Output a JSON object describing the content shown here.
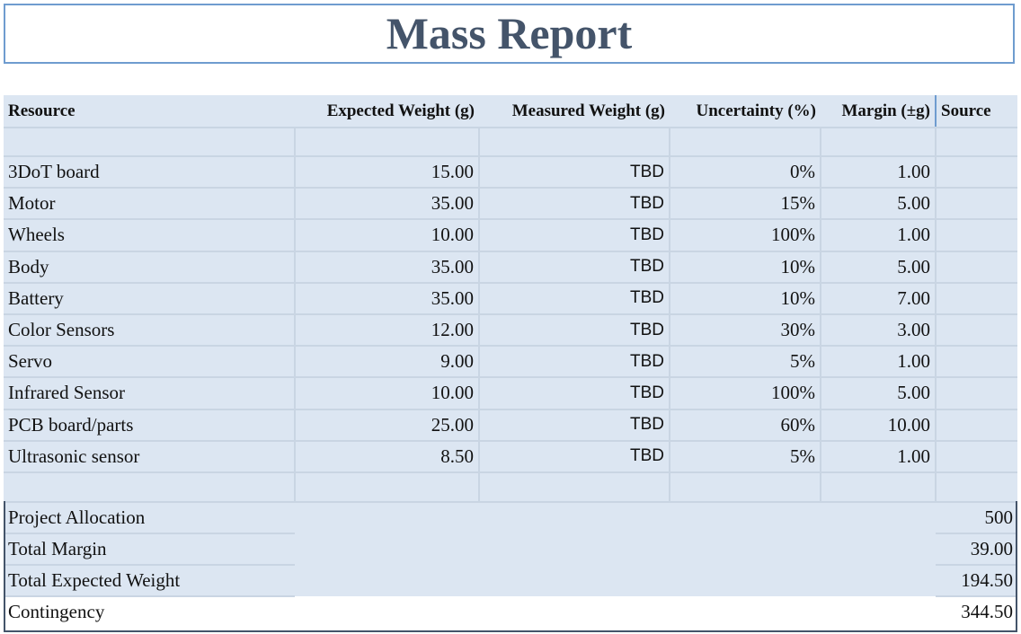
{
  "title": "Mass Report",
  "headers": {
    "resource": "Resource",
    "expected": "Expected Weight (g)",
    "measured": "Measured Weight (g)",
    "uncertainty": "Uncertainty (%)",
    "margin": "Margin (±g)",
    "source": "Source"
  },
  "rows": [
    {
      "resource": "3DoT board",
      "expected": "15.00",
      "measured": "TBD",
      "uncertainty": "0%",
      "margin": "1.00",
      "source": ""
    },
    {
      "resource": "Motor",
      "expected": "35.00",
      "measured": "TBD",
      "uncertainty": "15%",
      "margin": "5.00",
      "source": ""
    },
    {
      "resource": "Wheels",
      "expected": "10.00",
      "measured": "TBD",
      "uncertainty": "100%",
      "margin": "1.00",
      "source": ""
    },
    {
      "resource": "Body",
      "expected": "35.00",
      "measured": "TBD",
      "uncertainty": "10%",
      "margin": "5.00",
      "source": ""
    },
    {
      "resource": "Battery",
      "expected": "35.00",
      "measured": "TBD",
      "uncertainty": "10%",
      "margin": "7.00",
      "source": ""
    },
    {
      "resource": "Color Sensors",
      "expected": "12.00",
      "measured": "TBD",
      "uncertainty": "30%",
      "margin": "3.00",
      "source": ""
    },
    {
      "resource": "Servo",
      "expected": "9.00",
      "measured": "TBD",
      "uncertainty": "5%",
      "margin": "1.00",
      "source": ""
    },
    {
      "resource": "Infrared Sensor",
      "expected": "10.00",
      "measured": "TBD",
      "uncertainty": "100%",
      "margin": "5.00",
      "source": ""
    },
    {
      "resource": "PCB board/parts",
      "expected": "25.00",
      "measured": "TBD",
      "uncertainty": "60%",
      "margin": "10.00",
      "source": ""
    },
    {
      "resource": "Ultrasonic sensor",
      "expected": "8.50",
      "measured": "TBD",
      "uncertainty": "5%",
      "margin": "1.00",
      "source": ""
    }
  ],
  "totals": [
    {
      "label": "Project Allocation",
      "value": "500"
    },
    {
      "label": "Total Margin",
      "value": "39.00"
    },
    {
      "label": "Total Expected Weight",
      "value": "194.50"
    },
    {
      "label": "Contingency",
      "value": "344.50"
    }
  ],
  "colors": {
    "title_text": "#44546a",
    "title_border": "#6f9ccf",
    "row_fill": "#dce6f2",
    "grid_line": "#c9d5e3",
    "totals_frame": "#44546a"
  }
}
